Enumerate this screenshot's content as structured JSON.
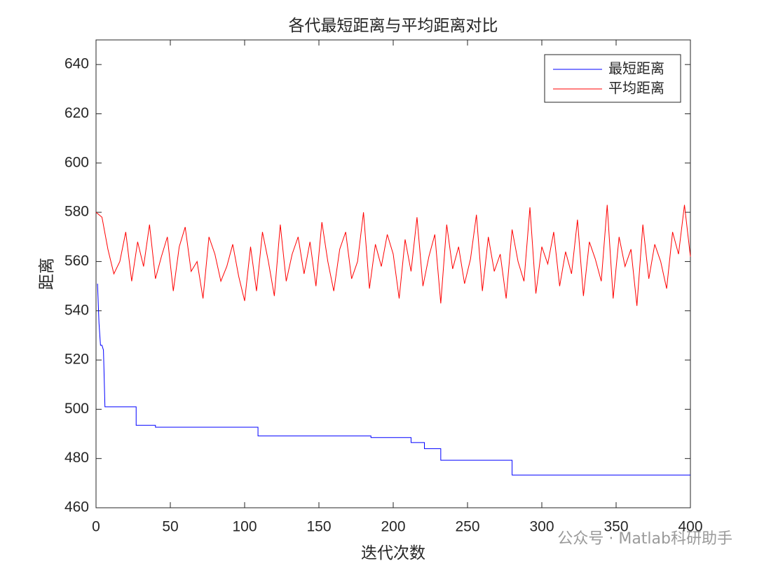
{
  "chart_data": {
    "type": "line",
    "title": "各代最短距离与平均距离对比",
    "xlabel": "迭代次数",
    "ylabel": "距离",
    "watermark": "公众号 · Matlab科研助手",
    "xlim": [
      0,
      400
    ],
    "xticks": [
      0,
      50,
      100,
      150,
      200,
      250,
      300,
      350,
      400
    ],
    "ylim": [
      460,
      650
    ],
    "yticks": [
      460,
      480,
      500,
      520,
      540,
      560,
      580,
      600,
      620,
      640
    ],
    "legend": "top-right",
    "series": [
      {
        "name": "最短距离",
        "color": "#0000ff",
        "x": [
          1,
          2,
          3,
          4,
          5,
          6,
          27,
          27,
          40,
          40,
          109,
          109,
          185,
          185,
          212,
          212,
          221,
          221,
          232,
          232,
          280,
          280,
          400
        ],
        "values": [
          551,
          535,
          526,
          526,
          524,
          501,
          501,
          493.5,
          493.5,
          492.7,
          492.7,
          489.2,
          489.2,
          488.5,
          488.5,
          486.5,
          486.5,
          484,
          484,
          479.3,
          479.3,
          473.3,
          473.3
        ]
      },
      {
        "name": "平均距离",
        "color": "#ff0000",
        "x": [
          0,
          4,
          8,
          12,
          16,
          20,
          24,
          28,
          32,
          36,
          40,
          44,
          48,
          52,
          56,
          60,
          64,
          68,
          72,
          76,
          80,
          84,
          88,
          92,
          96,
          100,
          104,
          108,
          112,
          116,
          120,
          124,
          128,
          132,
          136,
          140,
          144,
          148,
          152,
          156,
          160,
          164,
          168,
          172,
          176,
          180,
          184,
          188,
          192,
          196,
          200,
          204,
          208,
          212,
          216,
          220,
          224,
          228,
          232,
          236,
          240,
          244,
          248,
          252,
          256,
          260,
          264,
          268,
          272,
          276,
          280,
          284,
          288,
          292,
          296,
          300,
          304,
          308,
          312,
          316,
          320,
          324,
          328,
          332,
          336,
          340,
          344,
          348,
          352,
          356,
          360,
          364,
          368,
          372,
          376,
          380,
          384,
          388,
          392,
          396,
          400
        ],
        "values": [
          580,
          578,
          565,
          555,
          560,
          572,
          552,
          568,
          558,
          575,
          553,
          562,
          570,
          548,
          566,
          574,
          556,
          560,
          545,
          570,
          563,
          552,
          558,
          567,
          554,
          544,
          566,
          548,
          572,
          560,
          546,
          575,
          552,
          563,
          570,
          555,
          568,
          550,
          576,
          560,
          548,
          565,
          572,
          553,
          560,
          580,
          549,
          567,
          558,
          571,
          563,
          545,
          569,
          556,
          578,
          550,
          562,
          571,
          543,
          575,
          557,
          566,
          551,
          561,
          579,
          548,
          570,
          556,
          563,
          545,
          573,
          560,
          552,
          582,
          547,
          566,
          559,
          572,
          550,
          564,
          555,
          577,
          546,
          568,
          561,
          552,
          583,
          545,
          570,
          558,
          565,
          542,
          575,
          553,
          567,
          560,
          549,
          572,
          563,
          583,
          562
        ]
      }
    ]
  }
}
